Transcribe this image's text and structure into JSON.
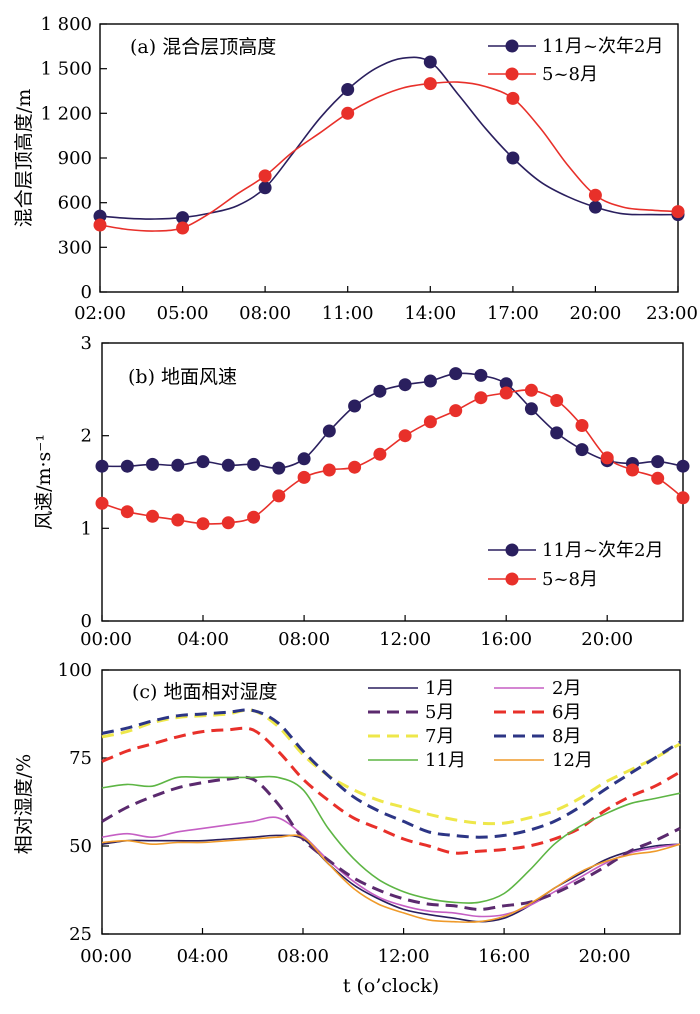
{
  "chart_data": [
    {
      "id": "a",
      "type": "line",
      "title": "(a) 混合层顶高度",
      "ylabel": "混合层顶高度/m",
      "xlabel": "",
      "x_labels": [
        "02:00",
        "05:00",
        "08:00",
        "11:00",
        "14:00",
        "17:00",
        "20:00",
        "23:00"
      ],
      "y_ticks": [
        "0",
        "300",
        "600",
        "900",
        "1 200",
        "1 500",
        "1 800"
      ],
      "xlim": [
        2,
        23
      ],
      "ylim": [
        0,
        1800
      ],
      "legend_position": "top-right",
      "series": [
        {
          "name": "11月~次年2月",
          "color": "#2a1f5e",
          "line_x": [
            2,
            3,
            4,
            5,
            6,
            7,
            8,
            9,
            10,
            11,
            12,
            13,
            14,
            15,
            16,
            17,
            18,
            19,
            20,
            21,
            22,
            23
          ],
          "line_y": [
            510,
            495,
            490,
            500,
            530,
            580,
            700,
            930,
            1170,
            1360,
            1500,
            1570,
            1545,
            1330,
            1100,
            900,
            740,
            640,
            570,
            525,
            520,
            520
          ],
          "marker_x": [
            2,
            5,
            8,
            11,
            14,
            17,
            20,
            23
          ],
          "marker_y": [
            510,
            500,
            700,
            1360,
            1545,
            900,
            570,
            520
          ]
        },
        {
          "name": "5~8月",
          "color": "#e8302a",
          "line_x": [
            2,
            3,
            4,
            5,
            6,
            7,
            8,
            9,
            10,
            11,
            12,
            13,
            14,
            15,
            16,
            17,
            18,
            19,
            20,
            21,
            22,
            23
          ],
          "line_y": [
            450,
            420,
            410,
            430,
            530,
            660,
            780,
            940,
            1070,
            1200,
            1300,
            1370,
            1400,
            1410,
            1380,
            1300,
            1100,
            850,
            650,
            570,
            550,
            540
          ],
          "marker_x": [
            2,
            5,
            8,
            11,
            14,
            17,
            20,
            23
          ],
          "marker_y": [
            450,
            430,
            780,
            1200,
            1400,
            1300,
            650,
            540
          ]
        }
      ]
    },
    {
      "id": "b",
      "type": "line",
      "title": "(b) 地面风速",
      "ylabel": "风速/m·s⁻¹",
      "xlabel": "",
      "x_labels": [
        "00:00",
        "04:00",
        "08:00",
        "12:00",
        "16:00",
        "20:00"
      ],
      "y_ticks": [
        "0",
        "1",
        "2",
        "3"
      ],
      "xlim": [
        0,
        23
      ],
      "ylim": [
        0,
        3
      ],
      "legend_position": "lower-right",
      "series": [
        {
          "name": "11月~次年2月",
          "color": "#2a1f5e",
          "x": [
            0,
            1,
            2,
            3,
            4,
            5,
            6,
            7,
            8,
            9,
            10,
            11,
            12,
            13,
            14,
            15,
            16,
            17,
            18,
            19,
            20,
            21,
            22,
            23
          ],
          "y": [
            1.67,
            1.67,
            1.69,
            1.68,
            1.72,
            1.68,
            1.69,
            1.65,
            1.75,
            2.05,
            2.32,
            2.48,
            2.55,
            2.59,
            2.67,
            2.65,
            2.56,
            2.29,
            2.03,
            1.85,
            1.73,
            1.7,
            1.72,
            1.67
          ]
        },
        {
          "name": "5~8月",
          "color": "#e8302a",
          "x": [
            0,
            1,
            2,
            3,
            4,
            5,
            6,
            7,
            8,
            9,
            10,
            11,
            12,
            13,
            14,
            15,
            16,
            17,
            18,
            19,
            20,
            21,
            22,
            23
          ],
          "y": [
            1.27,
            1.18,
            1.13,
            1.09,
            1.05,
            1.06,
            1.12,
            1.35,
            1.55,
            1.63,
            1.66,
            1.8,
            2.0,
            2.15,
            2.27,
            2.41,
            2.46,
            2.49,
            2.38,
            2.11,
            1.76,
            1.63,
            1.54,
            1.33
          ]
        }
      ]
    },
    {
      "id": "c",
      "type": "line",
      "title": "(c) 地面相对湿度",
      "ylabel": "相对湿度/%",
      "xlabel": "t (o’clock)",
      "x_labels": [
        "00:00",
        "04:00",
        "08:00",
        "12:00",
        "16:00",
        "20:00"
      ],
      "y_ticks": [
        "25",
        "50",
        "75",
        "100"
      ],
      "xlim": [
        0,
        23
      ],
      "ylim": [
        25,
        100
      ],
      "legend_position": "top-right",
      "series": [
        {
          "name": "1月",
          "color": "#2a1f5e",
          "dash": "solid",
          "x": [
            0,
            1,
            2,
            3,
            4,
            5,
            6,
            7,
            8,
            9,
            10,
            11,
            12,
            13,
            14,
            15,
            16,
            17,
            18,
            19,
            20,
            21,
            22,
            23
          ],
          "y": [
            50.5,
            51.5,
            51.5,
            51.5,
            51.5,
            52,
            52.5,
            53,
            52,
            45,
            39,
            35,
            32,
            30.5,
            29.5,
            28.5,
            29.5,
            33,
            38,
            42,
            46,
            48.5,
            50,
            50.5
          ]
        },
        {
          "name": "2月",
          "color": "#c55fc4",
          "dash": "solid",
          "x": [
            0,
            1,
            2,
            3,
            4,
            5,
            6,
            7,
            8,
            9,
            10,
            11,
            12,
            13,
            14,
            15,
            16,
            17,
            18,
            19,
            20,
            21,
            22,
            23
          ],
          "y": [
            52.5,
            53.5,
            52.5,
            54,
            55,
            56,
            57,
            58,
            53,
            46,
            40,
            35.5,
            33,
            31.5,
            31,
            30,
            30.5,
            33,
            37,
            41,
            45,
            48,
            49.5,
            50.5
          ]
        },
        {
          "name": "5月",
          "color": "#5b2a6e",
          "dash": "dash",
          "x": [
            0,
            1,
            2,
            3,
            4,
            5,
            6,
            7,
            8,
            9,
            10,
            11,
            12,
            13,
            14,
            15,
            16,
            17,
            18,
            19,
            20,
            21,
            22,
            23
          ],
          "y": [
            57,
            61,
            64,
            66.5,
            68,
            69,
            69,
            62,
            52,
            46,
            41,
            37.5,
            35,
            33.5,
            33,
            32,
            33,
            34,
            36.5,
            40,
            44,
            48.5,
            51.5,
            55
          ]
        },
        {
          "name": "6月",
          "color": "#e8302a",
          "dash": "dash",
          "x": [
            0,
            1,
            2,
            3,
            4,
            5,
            6,
            7,
            8,
            9,
            10,
            11,
            12,
            13,
            14,
            15,
            16,
            17,
            18,
            19,
            20,
            21,
            22,
            23
          ],
          "y": [
            74,
            77,
            79,
            81,
            82.5,
            83,
            83,
            77,
            69,
            63,
            58,
            55,
            52,
            50,
            48,
            48.5,
            49,
            50,
            52,
            55,
            60,
            64,
            67,
            71
          ]
        },
        {
          "name": "7月",
          "color": "#eee74a",
          "dash": "dash",
          "x": [
            0,
            1,
            2,
            3,
            4,
            5,
            6,
            7,
            8,
            9,
            10,
            11,
            12,
            13,
            14,
            15,
            16,
            17,
            18,
            19,
            20,
            21,
            22,
            23
          ],
          "y": [
            81,
            82.5,
            85,
            86.5,
            87,
            87.5,
            88.5,
            84,
            76,
            70,
            66,
            63,
            61,
            59,
            57.5,
            56.5,
            56.5,
            58,
            60,
            63.5,
            68,
            71.5,
            75,
            79
          ]
        },
        {
          "name": "8月",
          "color": "#2c3585",
          "dash": "dash",
          "x": [
            0,
            1,
            2,
            3,
            4,
            5,
            6,
            7,
            8,
            9,
            10,
            11,
            12,
            13,
            14,
            15,
            16,
            17,
            18,
            19,
            20,
            21,
            22,
            23
          ],
          "y": [
            82,
            83.5,
            85.5,
            87,
            87.5,
            88,
            88.5,
            85,
            77,
            70,
            64,
            60,
            57,
            54,
            53,
            52.5,
            53,
            54.5,
            57,
            61,
            66,
            70.5,
            75,
            79.5
          ]
        },
        {
          "name": "11月",
          "color": "#5db544",
          "dash": "solid",
          "x": [
            0,
            1,
            2,
            3,
            4,
            5,
            6,
            7,
            8,
            9,
            10,
            11,
            12,
            13,
            14,
            15,
            16,
            17,
            18,
            19,
            20,
            21,
            22,
            23
          ],
          "y": [
            66.5,
            67.5,
            67,
            69.5,
            69.5,
            69.5,
            69.5,
            69.5,
            66,
            55,
            46.5,
            40.5,
            37,
            35,
            34,
            34,
            36.5,
            43,
            50.5,
            55.5,
            59,
            62,
            63.5,
            65
          ]
        },
        {
          "name": "12月",
          "color": "#ef9a2a",
          "dash": "solid",
          "x": [
            0,
            1,
            2,
            3,
            4,
            5,
            6,
            7,
            8,
            9,
            10,
            11,
            12,
            13,
            14,
            15,
            16,
            17,
            18,
            19,
            20,
            21,
            22,
            23
          ],
          "y": [
            51,
            51.5,
            50.5,
            51,
            51,
            51.5,
            52,
            52.5,
            52.5,
            45,
            38,
            33.5,
            31,
            29,
            28.5,
            28.5,
            30,
            33.5,
            38,
            42.5,
            45.5,
            47.5,
            48.5,
            50.5
          ]
        }
      ]
    }
  ]
}
